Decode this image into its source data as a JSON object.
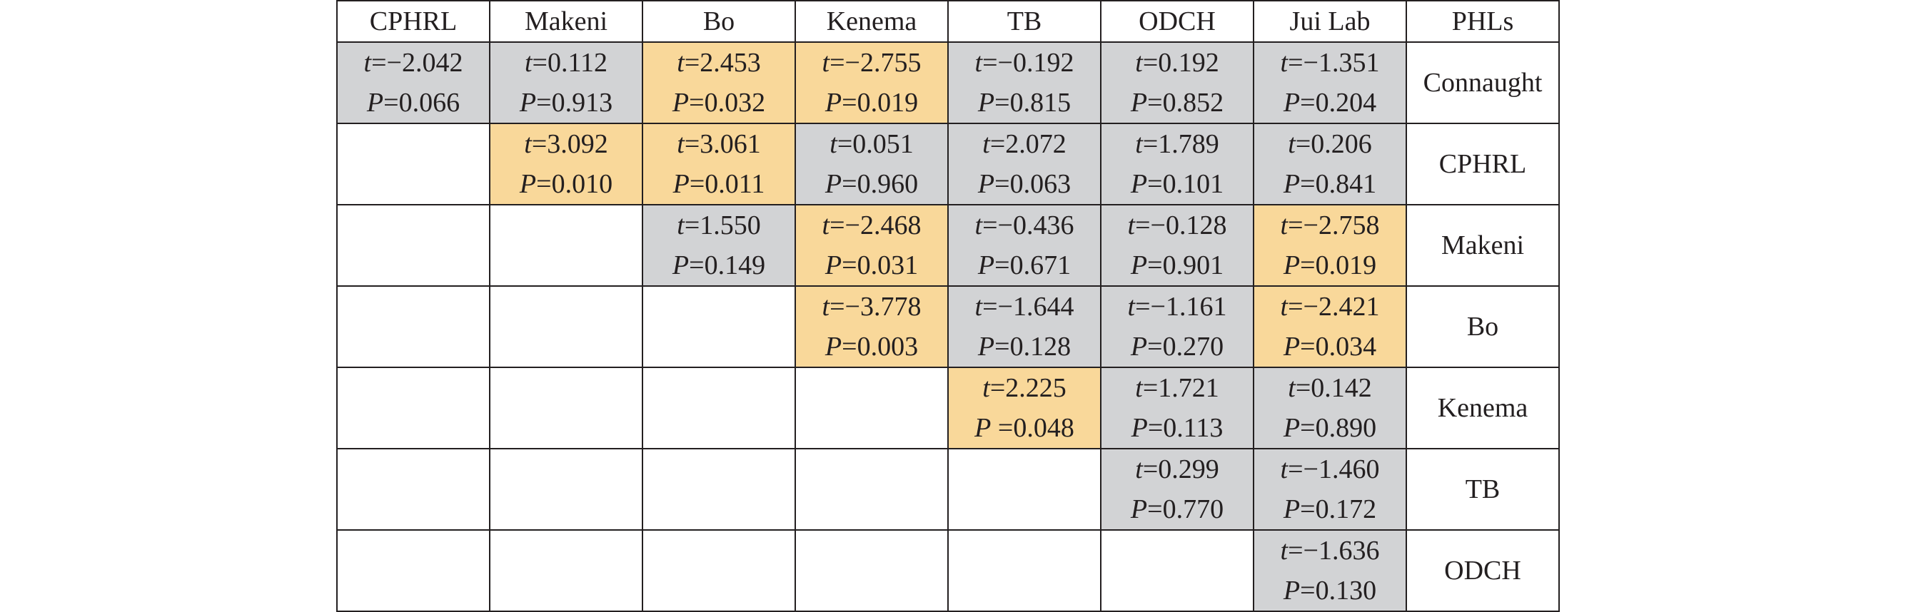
{
  "table": {
    "headers": [
      "CPHRL",
      "Makeni",
      "Bo",
      "Kenema",
      "TB",
      "ODCH",
      "Jui Lab",
      "PHLs"
    ],
    "colors": {
      "gray": "#d2d3d5",
      "orange": "#f9d89a",
      "border": "#231f20"
    },
    "rows": [
      {
        "label": "Connaught",
        "cells": [
          {
            "t": "=−2.042",
            "p": "=0.066",
            "tvar": "t",
            "pvar": "P",
            "color": "gray"
          },
          {
            "t": "=0.112",
            "p": "=0.913",
            "tvar": "t",
            "pvar": "P",
            "color": "gray"
          },
          {
            "t": "=2.453",
            "p": "=0.032",
            "tvar": "t",
            "pvar": "P",
            "color": "orange"
          },
          {
            "t": "=−2.755",
            "p": "=0.019",
            "tvar": "t",
            "pvar": "P",
            "color": "orange"
          },
          {
            "t": "=−0.192",
            "p": "=0.815",
            "tvar": "t",
            "pvar": "P",
            "color": "gray"
          },
          {
            "t": "=0.192",
            "p": "=0.852",
            "tvar": "t",
            "pvar": "P",
            "color": "gray"
          },
          {
            "t": "=−1.351",
            "p": "=0.204",
            "tvar": "t",
            "pvar": "P",
            "color": "gray"
          }
        ]
      },
      {
        "label": "CPHRL",
        "cells": [
          null,
          {
            "t": "=3.092",
            "p": "=0.010",
            "tvar": "t",
            "pvar": "P",
            "color": "orange"
          },
          {
            "t": "=3.061",
            "p": "=0.011",
            "tvar": "t",
            "pvar": "P",
            "color": "orange"
          },
          {
            "t": "=0.051",
            "p": "=0.960",
            "tvar": "t",
            "pvar": "P",
            "color": "gray"
          },
          {
            "t": "=2.072",
            "p": "=0.063",
            "tvar": "t",
            "pvar": "P",
            "color": "gray"
          },
          {
            "t": "=1.789",
            "p": "=0.101",
            "tvar": "t",
            "pvar": "P",
            "color": "gray"
          },
          {
            "t": "=0.206",
            "p": "=0.841",
            "tvar": "t",
            "pvar": "P",
            "color": "gray"
          }
        ]
      },
      {
        "label": "Makeni",
        "cells": [
          null,
          null,
          {
            "t": "=1.550",
            "p": "=0.149",
            "tvar": "t",
            "pvar": "P",
            "color": "gray"
          },
          {
            "t": "=−2.468",
            "p": "=0.031",
            "tvar": "t",
            "pvar": "P",
            "color": "orange"
          },
          {
            "t": "=−0.436",
            "p": "=0.671",
            "tvar": "t",
            "pvar": "P",
            "color": "gray"
          },
          {
            "t": "=−0.128",
            "p": "=0.901",
            "tvar": "t",
            "pvar": "P",
            "color": "gray"
          },
          {
            "t": "=−2.758",
            "p": "=0.019",
            "tvar": "t",
            "pvar": "P",
            "color": "orange"
          }
        ]
      },
      {
        "label": "Bo",
        "cells": [
          null,
          null,
          null,
          {
            "t": "=−3.778",
            "p": "=0.003",
            "tvar": "t",
            "pvar": "P",
            "color": "orange"
          },
          {
            "t": "=−1.644",
            "p": "=0.128",
            "tvar": "t",
            "pvar": "P",
            "color": "gray"
          },
          {
            "t": "=−1.161",
            "p": "=0.270",
            "tvar": "t",
            "pvar": "P",
            "color": "gray"
          },
          {
            "t": "=−2.421",
            "p": "=0.034",
            "tvar": "t",
            "pvar": "P",
            "color": "orange"
          }
        ]
      },
      {
        "label": "Kenema",
        "cells": [
          null,
          null,
          null,
          null,
          {
            "t": "=2.225",
            "p": " =0.048",
            "tvar": "t",
            "pvar": "P",
            "color": "orange"
          },
          {
            "t": "=1.721",
            "p": "=0.113",
            "tvar": "t",
            "pvar": "P",
            "color": "gray"
          },
          {
            "t": "=0.142",
            "p": "=0.890",
            "tvar": "t",
            "pvar": "P",
            "color": "gray"
          }
        ]
      },
      {
        "label": "TB",
        "cells": [
          null,
          null,
          null,
          null,
          null,
          {
            "t": "=0.299",
            "p": "=0.770",
            "tvar": "t",
            "pvar": "P",
            "color": "gray"
          },
          {
            "t": "=−1.460",
            "p": "=0.172",
            "tvar": "t",
            "pvar": "P",
            "color": "gray"
          }
        ]
      },
      {
        "label": "ODCH",
        "cells": [
          null,
          null,
          null,
          null,
          null,
          null,
          {
            "t": "=−1.636",
            "p": "=0.130",
            "tvar": "t",
            "pvar": "P",
            "color": "gray"
          }
        ]
      }
    ]
  }
}
